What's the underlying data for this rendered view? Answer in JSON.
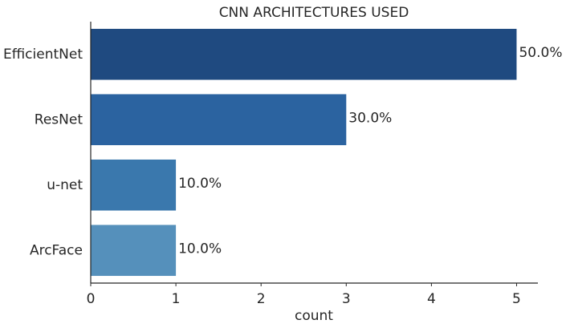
{
  "chart_data": {
    "type": "bar",
    "orientation": "horizontal",
    "title": "CNN ARCHITECTURES USED",
    "xlabel": "count",
    "ylabel": "",
    "categories": [
      "EfficientNet",
      "ResNet",
      "u-net",
      "ArcFace"
    ],
    "values": [
      5,
      3,
      1,
      1
    ],
    "data_labels": [
      "50.0%",
      "30.0%",
      "10.0%",
      "10.0%"
    ],
    "colors": [
      "#1f4a80",
      "#2b63a0",
      "#3a78ad",
      "#5590bb"
    ],
    "xlim": [
      0,
      5.25
    ],
    "xticks": [
      "0",
      "1",
      "2",
      "3",
      "4",
      "5"
    ],
    "grid": false,
    "legend": "none"
  }
}
